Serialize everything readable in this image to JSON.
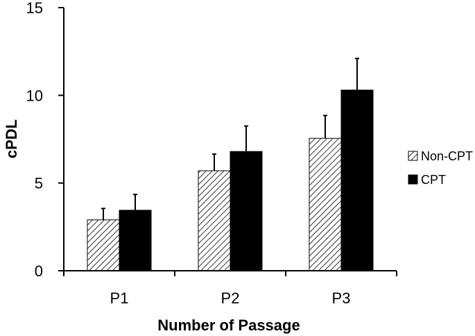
{
  "chart_data": {
    "type": "bar",
    "title": "",
    "xlabel": "Number of Passage",
    "ylabel": "cPDL",
    "categories": [
      "P1",
      "P2",
      "P3"
    ],
    "ylim": [
      0,
      15
    ],
    "yticks": [
      0,
      5,
      10,
      15
    ],
    "grid": false,
    "legend_position": "right",
    "series": [
      {
        "name": "Non-CPT",
        "values": [
          2.9,
          5.7,
          7.55
        ],
        "errors": [
          0.65,
          0.95,
          1.3
        ],
        "fill": "hatched",
        "color": "#000000"
      },
      {
        "name": "CPT",
        "values": [
          3.45,
          6.8,
          10.3
        ],
        "errors": [
          0.9,
          1.45,
          1.8
        ],
        "fill": "solid",
        "color": "#000000"
      }
    ]
  }
}
